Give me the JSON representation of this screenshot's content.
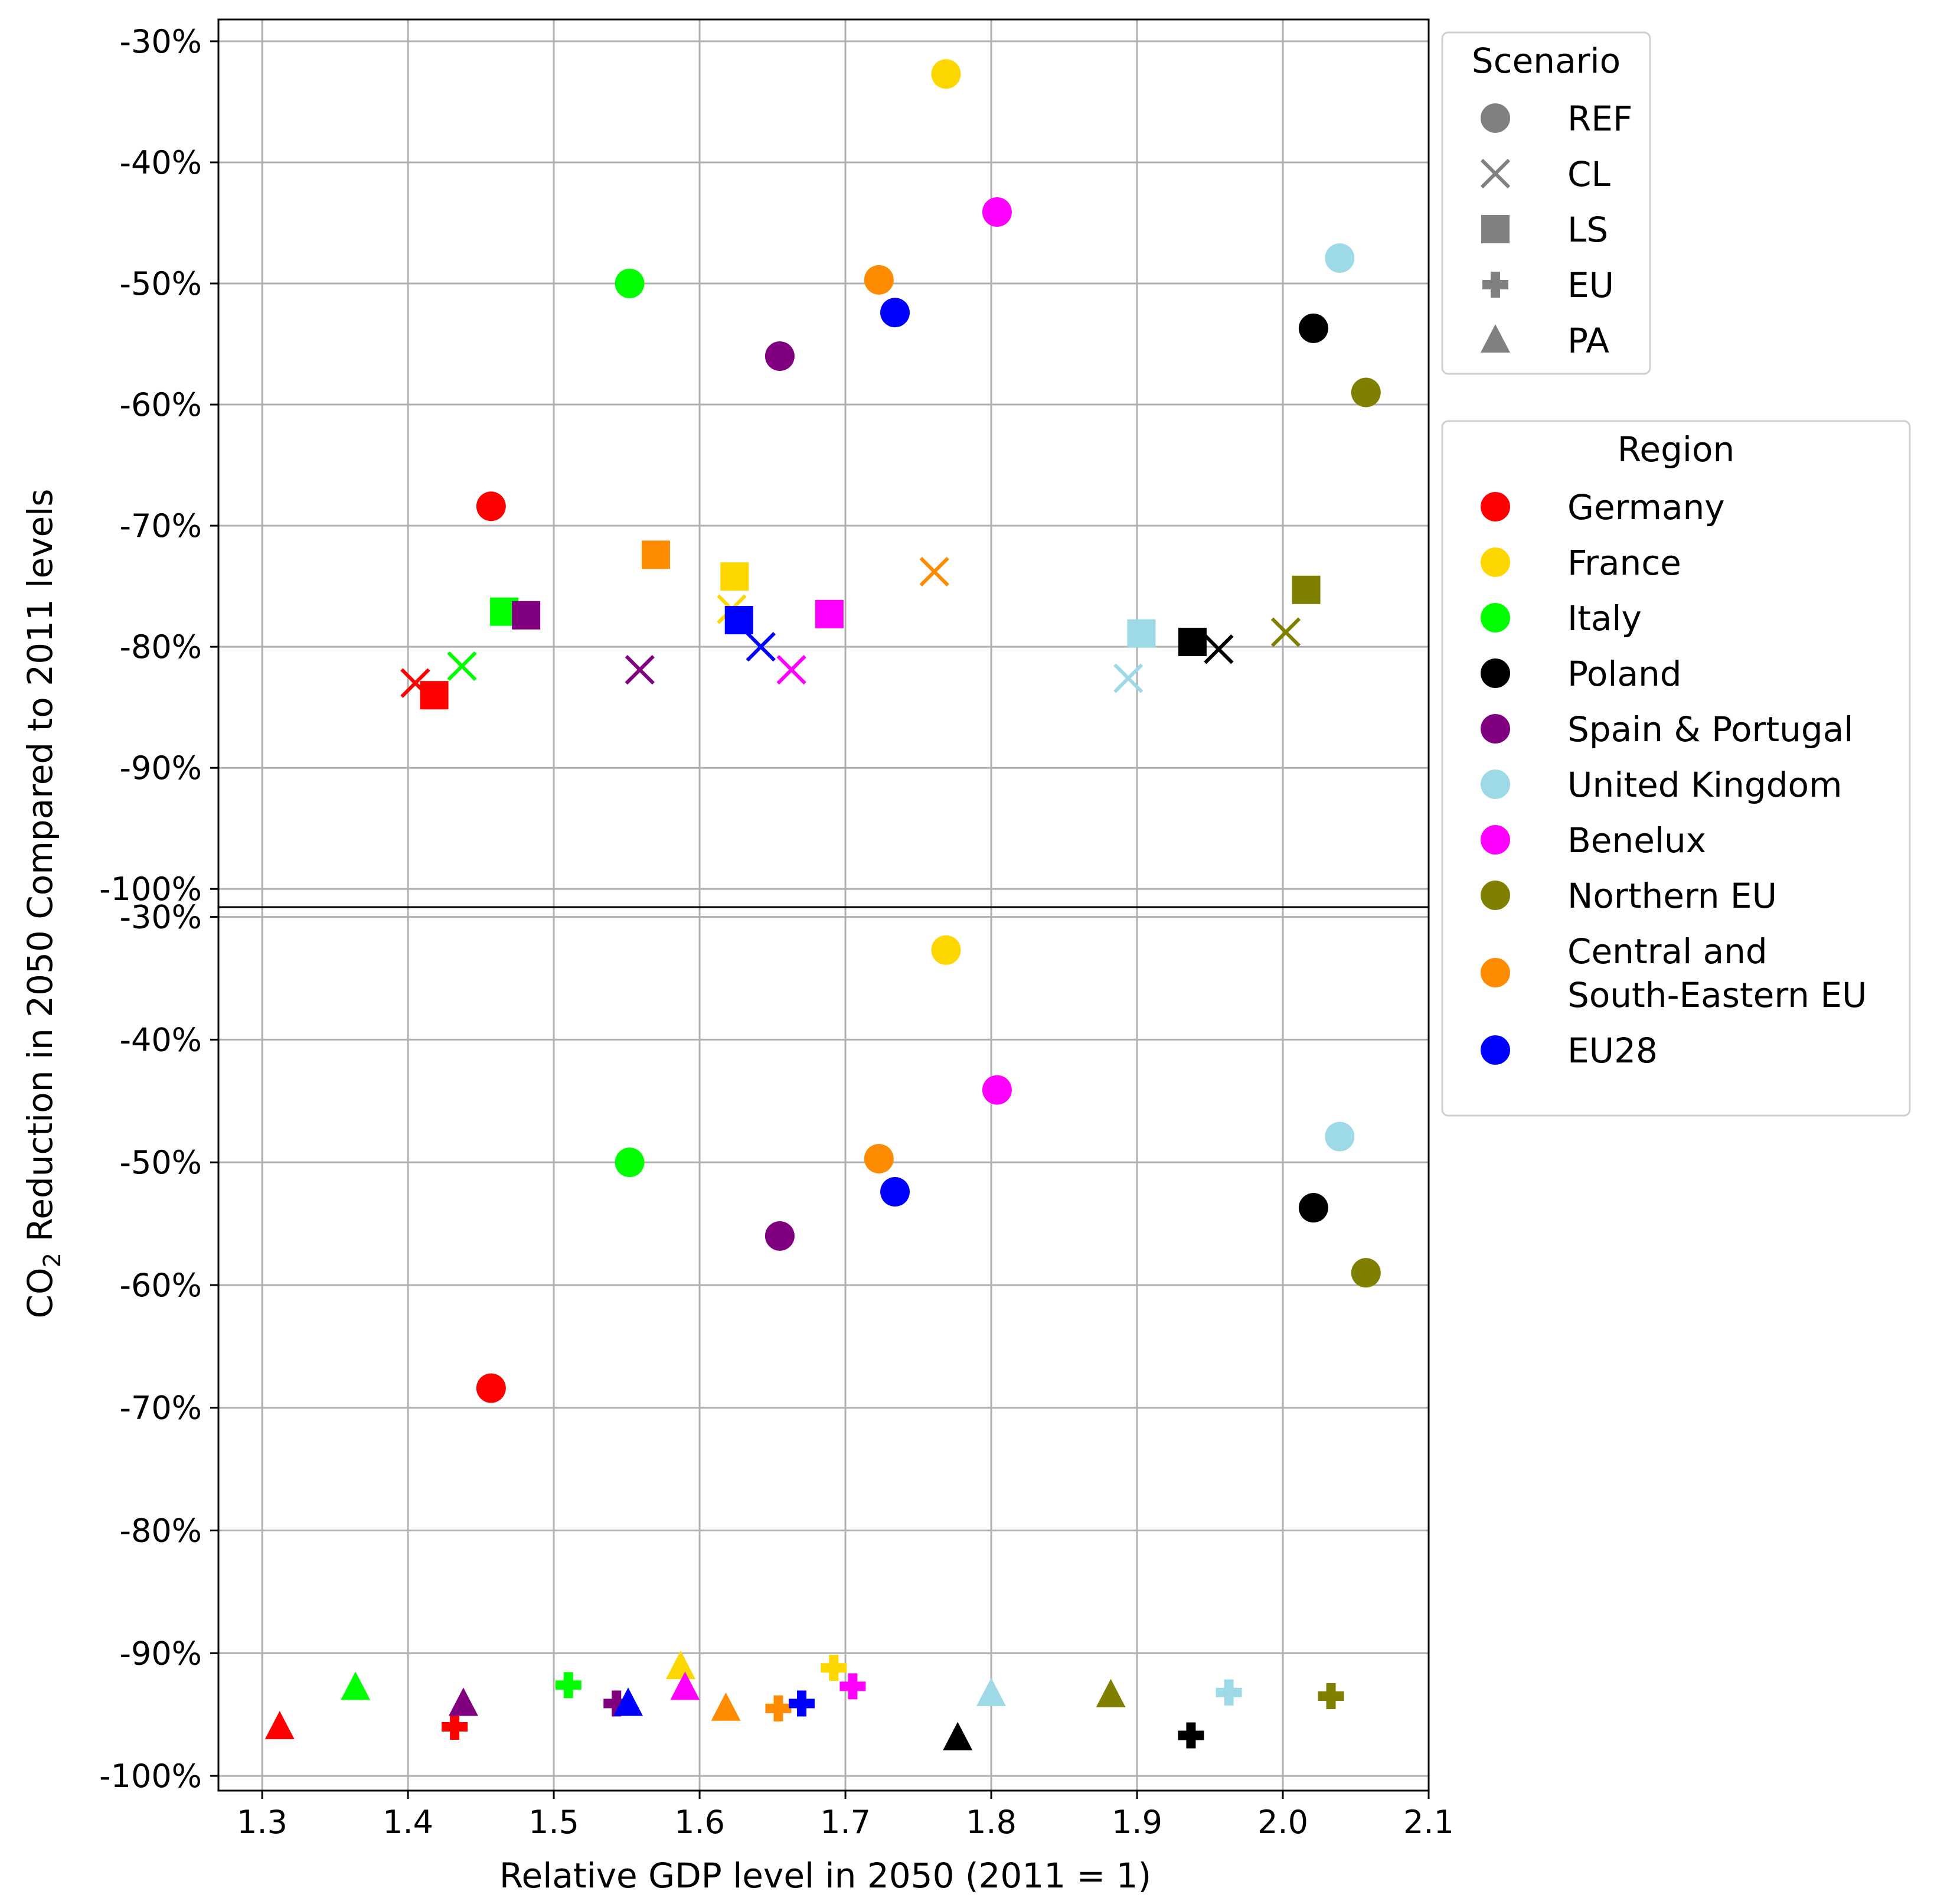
{
  "chart_data": {
    "type": "scatter",
    "xlabel": "Relative GDP level in 2050 (2011 = 1)",
    "ylabel": {
      "prefix": "CO",
      "subscript": "2",
      "suffix": " Reduction in 2050 Compared to 2011 levels"
    },
    "xlim": [
      1.27,
      2.1
    ],
    "xticks": [
      1.3,
      1.4,
      1.5,
      1.6,
      1.7,
      1.8,
      1.9,
      2.0,
      2.1
    ],
    "xtick_labels": [
      "1.3",
      "1.4",
      "1.5",
      "1.6",
      "1.7",
      "1.8",
      "1.9",
      "2.0",
      "2.1"
    ],
    "grid": true,
    "scenario_legend": {
      "title": "Scenario",
      "placement": "upper right, outside plot",
      "items": [
        {
          "label": "REF",
          "marker": "circle"
        },
        {
          "label": "CL",
          "marker": "x"
        },
        {
          "label": "LS",
          "marker": "square"
        },
        {
          "label": "EU",
          "marker": "plus"
        },
        {
          "label": "PA",
          "marker": "triangle"
        }
      ],
      "color": "#808080"
    },
    "region_legend": {
      "title": "Region",
      "placement": "right, outside plot, below scenario legend",
      "items": [
        {
          "label": [
            "Germany"
          ],
          "color": "#ff0000"
        },
        {
          "label": [
            "France"
          ],
          "color": "#ffd700"
        },
        {
          "label": [
            "Italy"
          ],
          "color": "#00ff00"
        },
        {
          "label": [
            "Poland"
          ],
          "color": "#000000"
        },
        {
          "label": [
            "Spain & Portugal"
          ],
          "color": "#800080"
        },
        {
          "label": [
            "United Kingdom"
          ],
          "color": "#9dd9e6"
        },
        {
          "label": [
            "Benelux"
          ],
          "color": "#ff00ff"
        },
        {
          "label": [
            "Northern EU"
          ],
          "color": "#808000"
        },
        {
          "label": [
            "Central and",
            "South-Eastern EU"
          ],
          "color": "#ff8c00"
        },
        {
          "label": [
            "EU28"
          ],
          "color": "#0000ff"
        }
      ]
    },
    "panels": [
      {
        "name": "top",
        "ylim": [
          -101.5,
          -28.2
        ],
        "yticks": [
          -30,
          -40,
          -50,
          -60,
          -70,
          -80,
          -90,
          -100
        ],
        "ytick_labels": [
          "-30%",
          "-40%",
          "-50%",
          "-60%",
          "-70%",
          "-80%",
          "-90%",
          "-100%"
        ],
        "points": [
          {
            "region": "Germany",
            "scenario": "REF",
            "x": 1.457,
            "y": -68.4
          },
          {
            "region": "France",
            "scenario": "REF",
            "x": 1.769,
            "y": -32.7
          },
          {
            "region": "Italy",
            "scenario": "REF",
            "x": 1.552,
            "y": -50.0
          },
          {
            "region": "Poland",
            "scenario": "REF",
            "x": 2.021,
            "y": -53.7
          },
          {
            "region": "Spain & Portugal",
            "scenario": "REF",
            "x": 1.655,
            "y": -56.0
          },
          {
            "region": "United Kingdom",
            "scenario": "REF",
            "x": 2.039,
            "y": -47.9
          },
          {
            "region": "Benelux",
            "scenario": "REF",
            "x": 1.804,
            "y": -44.1
          },
          {
            "region": "Northern EU",
            "scenario": "REF",
            "x": 2.057,
            "y": -59.0
          },
          {
            "region": "Central and South-Eastern EU",
            "scenario": "REF",
            "x": 1.723,
            "y": -49.7
          },
          {
            "region": "EU28",
            "scenario": "REF",
            "x": 1.734,
            "y": -52.4
          },
          {
            "region": "Germany",
            "scenario": "CL",
            "x": 1.405,
            "y": -83.0
          },
          {
            "region": "France",
            "scenario": "CL",
            "x": 1.622,
            "y": -76.9
          },
          {
            "region": "Italy",
            "scenario": "CL",
            "x": 1.437,
            "y": -81.6
          },
          {
            "region": "Poland",
            "scenario": "CL",
            "x": 1.956,
            "y": -80.2
          },
          {
            "region": "Spain & Portugal",
            "scenario": "CL",
            "x": 1.559,
            "y": -81.9
          },
          {
            "region": "United Kingdom",
            "scenario": "CL",
            "x": 1.894,
            "y": -82.6
          },
          {
            "region": "Benelux",
            "scenario": "CL",
            "x": 1.663,
            "y": -81.9
          },
          {
            "region": "Northern EU",
            "scenario": "CL",
            "x": 2.002,
            "y": -78.8
          },
          {
            "region": "Central and South-Eastern EU",
            "scenario": "CL",
            "x": 1.761,
            "y": -73.8
          },
          {
            "region": "EU28",
            "scenario": "CL",
            "x": 1.642,
            "y": -80.0
          },
          {
            "region": "Germany",
            "scenario": "LS",
            "x": 1.418,
            "y": -84.0
          },
          {
            "region": "France",
            "scenario": "LS",
            "x": 1.624,
            "y": -74.2
          },
          {
            "region": "Italy",
            "scenario": "LS",
            "x": 1.466,
            "y": -77.1
          },
          {
            "region": "Poland",
            "scenario": "LS",
            "x": 1.938,
            "y": -79.6
          },
          {
            "region": "Spain & Portugal",
            "scenario": "LS",
            "x": 1.481,
            "y": -77.4
          },
          {
            "region": "United Kingdom",
            "scenario": "LS",
            "x": 1.903,
            "y": -78.9
          },
          {
            "region": "Benelux",
            "scenario": "LS",
            "x": 1.689,
            "y": -77.3
          },
          {
            "region": "Northern EU",
            "scenario": "LS",
            "x": 2.016,
            "y": -75.3
          },
          {
            "region": "Central and South-Eastern EU",
            "scenario": "LS",
            "x": 1.57,
            "y": -72.4
          },
          {
            "region": "EU28",
            "scenario": "LS",
            "x": 1.627,
            "y": -77.8
          }
        ]
      },
      {
        "name": "bottom",
        "ylim": [
          -101.2,
          -29.2
        ],
        "yticks": [
          -30,
          -40,
          -50,
          -60,
          -70,
          -80,
          -90,
          -100
        ],
        "ytick_labels": [
          "-30%",
          "-40%",
          "-50%",
          "-60%",
          "-70%",
          "-80%",
          "-90%",
          "-100%"
        ],
        "points": [
          {
            "region": "Germany",
            "scenario": "REF",
            "x": 1.457,
            "y": -68.4
          },
          {
            "region": "France",
            "scenario": "REF",
            "x": 1.769,
            "y": -32.7
          },
          {
            "region": "Italy",
            "scenario": "REF",
            "x": 1.552,
            "y": -50.0
          },
          {
            "region": "Poland",
            "scenario": "REF",
            "x": 2.021,
            "y": -53.7
          },
          {
            "region": "Spain & Portugal",
            "scenario": "REF",
            "x": 1.655,
            "y": -56.0
          },
          {
            "region": "United Kingdom",
            "scenario": "REF",
            "x": 2.039,
            "y": -47.9
          },
          {
            "region": "Benelux",
            "scenario": "REF",
            "x": 1.804,
            "y": -44.1
          },
          {
            "region": "Northern EU",
            "scenario": "REF",
            "x": 2.057,
            "y": -59.0
          },
          {
            "region": "Central and South-Eastern EU",
            "scenario": "REF",
            "x": 1.723,
            "y": -49.7
          },
          {
            "region": "EU28",
            "scenario": "REF",
            "x": 1.734,
            "y": -52.4
          },
          {
            "region": "Germany",
            "scenario": "EU",
            "x": 1.432,
            "y": -96.0
          },
          {
            "region": "France",
            "scenario": "EU",
            "x": 1.692,
            "y": -91.2
          },
          {
            "region": "Italy",
            "scenario": "EU",
            "x": 1.51,
            "y": -92.6
          },
          {
            "region": "Poland",
            "scenario": "EU",
            "x": 1.937,
            "y": -96.7
          },
          {
            "region": "Spain & Portugal",
            "scenario": "EU",
            "x": 1.543,
            "y": -94.1
          },
          {
            "region": "United Kingdom",
            "scenario": "EU",
            "x": 1.963,
            "y": -93.2
          },
          {
            "region": "Benelux",
            "scenario": "EU",
            "x": 1.705,
            "y": -92.7
          },
          {
            "region": "Northern EU",
            "scenario": "EU",
            "x": 2.033,
            "y": -93.5
          },
          {
            "region": "Central and South-Eastern EU",
            "scenario": "EU",
            "x": 1.654,
            "y": -94.5
          },
          {
            "region": "EU28",
            "scenario": "EU",
            "x": 1.67,
            "y": -94.1
          },
          {
            "region": "Germany",
            "scenario": "PA",
            "x": 1.312,
            "y": -96.0
          },
          {
            "region": "France",
            "scenario": "PA",
            "x": 1.587,
            "y": -91.1
          },
          {
            "region": "Italy",
            "scenario": "PA",
            "x": 1.364,
            "y": -92.8
          },
          {
            "region": "Poland",
            "scenario": "PA",
            "x": 1.777,
            "y": -96.9
          },
          {
            "region": "Spain & Portugal",
            "scenario": "PA",
            "x": 1.438,
            "y": -94.1
          },
          {
            "region": "United Kingdom",
            "scenario": "PA",
            "x": 1.8,
            "y": -93.3
          },
          {
            "region": "Benelux",
            "scenario": "PA",
            "x": 1.59,
            "y": -92.8
          },
          {
            "region": "Northern EU",
            "scenario": "PA",
            "x": 1.882,
            "y": -93.4
          },
          {
            "region": "Central and South-Eastern EU",
            "scenario": "PA",
            "x": 1.618,
            "y": -94.5
          },
          {
            "region": "EU28",
            "scenario": "PA",
            "x": 1.551,
            "y": -94.1
          }
        ]
      }
    ]
  }
}
